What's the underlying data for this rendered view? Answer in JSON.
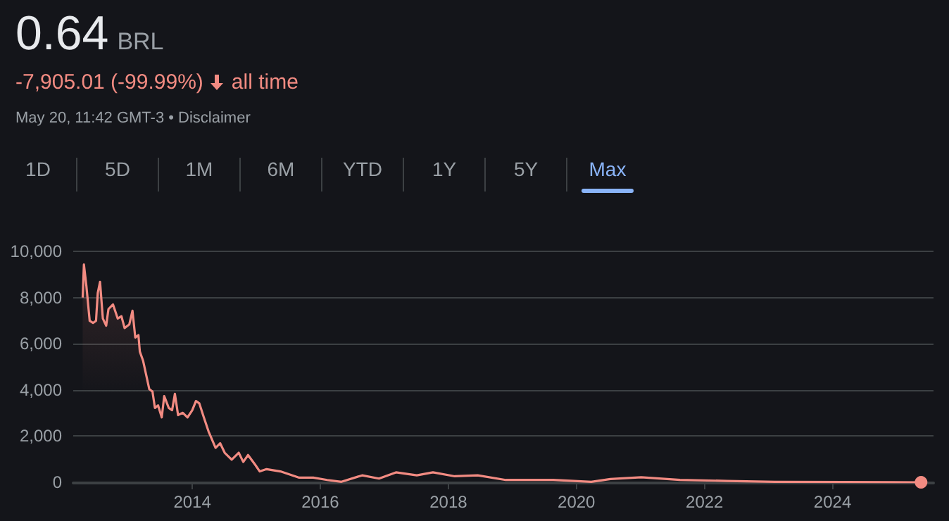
{
  "chart_data": {
    "type": "area",
    "title": "0.64",
    "subtitle": "BRL",
    "annotations": [
      "-7,905.01 (-99.99%)",
      "all time",
      "May 20, 11:42 GMT-3 • Disclaimer",
      "1D",
      "5D",
      "1M",
      "6M",
      "YTD",
      "1Y",
      "5Y",
      "Max"
    ],
    "x": [
      "2012-04-16",
      "2012-04-23",
      "2012-05-07",
      "2012-05-26",
      "2012-06-14",
      "2012-07-01",
      "2012-07-11",
      "2012-07-24",
      "2012-08-09",
      "2012-08-28",
      "2012-09-10",
      "2012-10-06",
      "2012-11-02",
      "2012-11-23",
      "2012-12-11",
      "2013-01-07",
      "2013-01-25",
      "2013-02-10",
      "2013-02-28",
      "2013-03-08",
      "2013-03-27",
      "2013-05-01",
      "2013-05-19",
      "2013-06-02",
      "2013-06-20",
      "2013-07-11",
      "2013-07-25",
      "2013-08-20",
      "2013-09-08",
      "2013-09-24",
      "2013-10-12",
      "2013-11-08",
      "2013-12-05",
      "2014-01-01",
      "2014-01-22",
      "2014-02-10",
      "2014-03-08",
      "2014-04-04",
      "2014-05-14",
      "2014-06-09",
      "2014-07-05",
      "2014-08-14",
      "2014-09-23",
      "2014-10-19",
      "2014-11-15",
      "2014-12-25",
      "2015-01-21",
      "2015-03-01",
      "2015-05-19",
      "2015-09-03",
      "2015-11-22",
      "2016-02-10",
      "2016-05-01",
      "2016-08-27",
      "2016-12-01",
      "2017-03-08",
      "2017-07-05",
      "2017-10-05",
      "2018-02-06",
      "2018-06-17",
      "2018-11-24",
      "2019-08-22",
      "2020-03-26",
      "2020-07-13",
      "2021-01-05",
      "2021-08-14",
      "2022-05-08",
      "2023-02-05",
      "2024-03-15",
      "2025-05-20"
    ],
    "series": [
      {
        "color": "#f28b82",
        "values": [
          8000,
          9430,
          8510,
          6990,
          6900,
          6990,
          8200,
          8680,
          7090,
          6780,
          7500,
          7700,
          7090,
          7190,
          6680,
          6840,
          7430,
          6270,
          6370,
          5660,
          5250,
          4030,
          3930,
          3220,
          3330,
          2810,
          3730,
          3220,
          3120,
          3830,
          2910,
          3010,
          2810,
          3120,
          3520,
          3420,
          2810,
          2200,
          1490,
          1690,
          1280,
          980,
          1280,
          880,
          1180,
          770,
          470,
          570,
          470,
          200,
          200,
          100,
          20,
          300,
          160,
          430,
          300,
          430,
          260,
          300,
          100,
          100,
          20,
          140,
          220,
          100,
          60,
          20,
          10,
          0.64
        ]
      }
    ],
    "xlim": [
      "2012-02-22",
      "2025-07-30"
    ],
    "xticks": [
      "2014",
      "2016",
      "2018",
      "2020",
      "2022",
      "2024"
    ],
    "ylim": [
      0,
      10000
    ],
    "yticks": [
      {
        "value": 0,
        "label": "0"
      },
      {
        "value": 2000,
        "label": "2,000"
      },
      {
        "value": 4000,
        "label": "4,000"
      },
      {
        "value": 6000,
        "label": "6,000"
      },
      {
        "value": 8000,
        "label": "8,000"
      },
      {
        "value": 10000,
        "label": "10,000"
      }
    ],
    "grid": "y",
    "marker": "none"
  }
}
